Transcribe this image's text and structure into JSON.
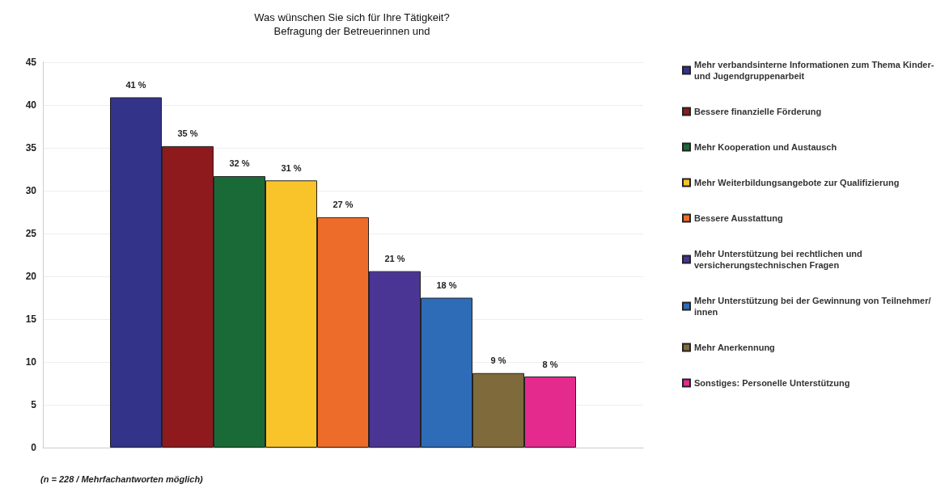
{
  "chart_data": {
    "type": "bar",
    "title": "Was wünschen Sie sich für Ihre Tätigkeit?\nBefragung der Betreuerinnen und",
    "categories": [
      null
    ],
    "ylim": [
      0,
      45
    ],
    "yticks": [
      0,
      5,
      10,
      15,
      20,
      25,
      30,
      35,
      40,
      45
    ],
    "grid": "y",
    "legend": "right",
    "annotations": [
      "(n = 228 / Mehrfachantworten möglich)"
    ],
    "series": [
      {
        "name": "Mehr verbandsinterne Informationen zum Thema Kinder- und Jugendgruppenarbeit",
        "color": "#33338a",
        "values": [
          40.9
        ],
        "value_labels": [
          "41 %"
        ]
      },
      {
        "name": "Bessere finanzielle Förderung",
        "color": "#8e1a1e",
        "values": [
          35.2
        ],
        "value_labels": [
          "35 %"
        ]
      },
      {
        "name": "Mehr Kooperation und Austausch",
        "color": "#1a6a38",
        "values": [
          31.7
        ],
        "value_labels": [
          "32 %"
        ]
      },
      {
        "name": "Mehr Weiterbildungsangebote zur Qualifizierung",
        "color": "#f8c42a",
        "values": [
          31.2
        ],
        "value_labels": [
          "31 %"
        ]
      },
      {
        "name": "Bessere Ausstattung",
        "color": "#ee6c2a",
        "values": [
          26.9
        ],
        "value_labels": [
          "27 %"
        ]
      },
      {
        "name": "Mehr Unterstützung bei rechtlichen und versicherungstechnischen Fragen",
        "color": "#4a3595",
        "values": [
          20.6
        ],
        "value_labels": [
          "21 %"
        ]
      },
      {
        "name": "Mehr Unterstützung bei der Gewinnung von Teilnehmer/innen",
        "color": "#2e6cb8",
        "values": [
          17.5
        ],
        "value_labels": [
          "18 %"
        ]
      },
      {
        "name": "Mehr Anerkennung",
        "color": "#7f6a3c",
        "values": [
          8.7
        ],
        "value_labels": [
          "9 %"
        ]
      },
      {
        "name": "Sonstiges: Personelle Unterstützung",
        "color": "#e52a8e",
        "values": [
          8.3
        ],
        "value_labels": [
          "8 %"
        ]
      }
    ]
  }
}
